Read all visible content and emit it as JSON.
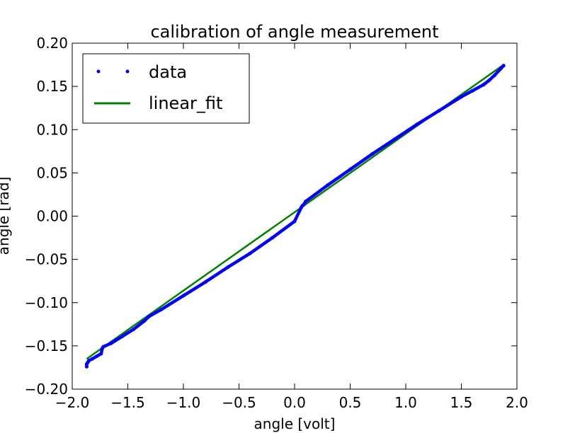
{
  "chart_data": {
    "type": "line",
    "title": "calibration of angle measurement",
    "xlabel": "angle [volt]",
    "ylabel": "angle [rad]",
    "xlim": [
      -2.0,
      2.0
    ],
    "ylim": [
      -0.2,
      0.2
    ],
    "xticks": [
      -2.0,
      -1.5,
      -1.0,
      -0.5,
      0.0,
      0.5,
      1.0,
      1.5,
      2.0
    ],
    "xtick_labels": [
      "−2.0",
      "−1.5",
      "−1.0",
      "−0.5",
      "0.0",
      "0.5",
      "1.0",
      "1.5",
      "2.0"
    ],
    "yticks": [
      0.2,
      0.15,
      0.1,
      0.05,
      0.0,
      -0.05,
      -0.1,
      -0.15,
      -0.2
    ],
    "ytick_labels": [
      "0.20",
      "0.15",
      "0.10",
      "0.05",
      "0.00",
      "−0.05",
      "−0.10",
      "−0.15",
      "−0.20"
    ],
    "grid": false,
    "legend_position": "upper-left",
    "series": [
      {
        "name": "data",
        "style": "points",
        "color": "#0000ff",
        "x": [
          -1.87,
          -1.87,
          -1.86,
          -1.85,
          -1.82,
          -1.78,
          -1.74,
          -1.73,
          -1.72,
          -1.65,
          -1.55,
          -1.45,
          -1.35,
          -1.31,
          -1.2,
          -1.0,
          -0.8,
          -0.6,
          -0.4,
          -0.2,
          0.0,
          0.06,
          0.07,
          0.08,
          0.1,
          0.3,
          0.5,
          0.7,
          0.9,
          1.1,
          1.3,
          1.5,
          1.6,
          1.7,
          1.75,
          1.8,
          1.85,
          1.88
        ],
        "y": [
          -0.174,
          -0.171,
          -0.169,
          -0.167,
          -0.165,
          -0.162,
          -0.159,
          -0.153,
          -0.151,
          -0.147,
          -0.139,
          -0.131,
          -0.121,
          -0.116,
          -0.108,
          -0.092,
          -0.076,
          -0.059,
          -0.043,
          -0.025,
          -0.006,
          0.01,
          0.012,
          0.013,
          0.017,
          0.036,
          0.054,
          0.072,
          0.089,
          0.106,
          0.122,
          0.138,
          0.145,
          0.152,
          0.157,
          0.163,
          0.17,
          0.174
        ]
      },
      {
        "name": "linear_fit",
        "style": "line",
        "color": "#008000",
        "x": [
          -1.87,
          1.88
        ],
        "y": [
          -0.165,
          0.175
        ]
      }
    ]
  }
}
